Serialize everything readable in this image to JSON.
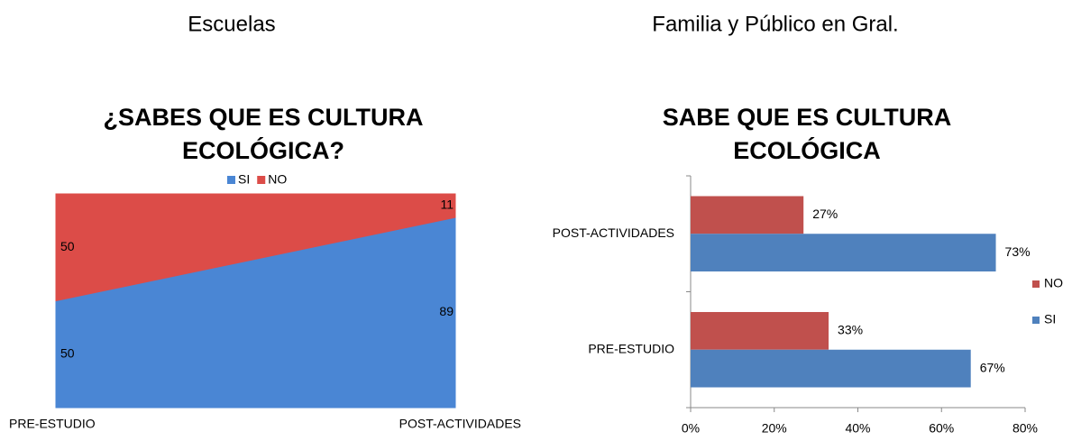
{
  "headings": [
    "Escuelas",
    "Familia y Público en Gral."
  ],
  "chart_data": [
    {
      "type": "area",
      "stacked": true,
      "title": "¿SABES QUE ES CULTURA ECOLÓGICA?",
      "categories": [
        "PRE-ESTUDIO",
        "POST-ACTIVIDADES"
      ],
      "series": [
        {
          "name": "SI",
          "color": "#4a86d4",
          "values": [
            50,
            89
          ]
        },
        {
          "name": "NO",
          "color": "#dc4c48",
          "values": [
            50,
            11
          ]
        }
      ],
      "ylim": [
        0,
        100
      ],
      "legend": "top"
    },
    {
      "type": "barh",
      "title": "SABE QUE ES CULTURA ECOLÓGICA",
      "categories": [
        "PRE-ESTUDIO",
        "POST-ACTIVIDADES"
      ],
      "series": [
        {
          "name": "NO",
          "color": "#c0504d",
          "values": [
            33,
            27
          ],
          "value_labels": [
            "33%",
            "27%"
          ]
        },
        {
          "name": "SI",
          "color": "#4f81bd",
          "values": [
            67,
            73
          ],
          "value_labels": [
            "67%",
            "73%"
          ]
        }
      ],
      "xlim": [
        0,
        80
      ],
      "xticks": [
        {
          "value": 0,
          "label": "0%"
        },
        {
          "value": 20,
          "label": "20%"
        },
        {
          "value": 40,
          "label": "40%"
        },
        {
          "value": 60,
          "label": "60%"
        },
        {
          "value": 80,
          "label": "80%"
        }
      ],
      "legend": "right"
    }
  ]
}
